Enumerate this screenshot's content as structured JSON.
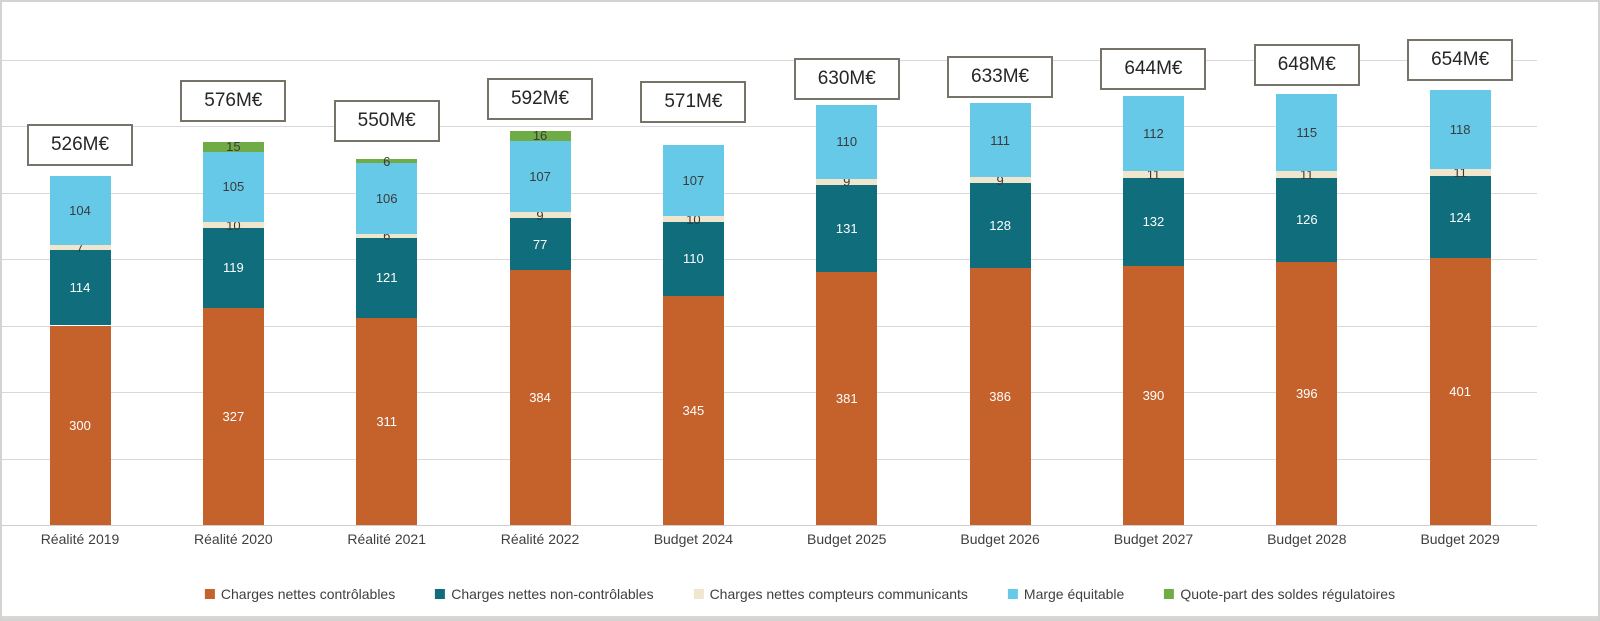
{
  "chart_data": {
    "type": "bar",
    "stacked": true,
    "title": "",
    "unit": "M€",
    "categories": [
      "Réalité 2019",
      "Réalité 2020",
      "Réalité 2021",
      "Réalité 2022",
      "Budget 2024",
      "Budget 2025",
      "Budget 2026",
      "Budget 2027",
      "Budget 2028",
      "Budget 2029"
    ],
    "series": [
      {
        "name": "Charges nettes contrôlables",
        "slug": "charges-nettes-controlables",
        "color": "#C5612B",
        "label_color": "#FFFFFF",
        "values": [
          300,
          327,
          311,
          384,
          345,
          381,
          386,
          390,
          396,
          401
        ]
      },
      {
        "name": "Charges nettes non-contrôlables",
        "slug": "charges-nettes-non-controlables",
        "color": "#0F6D7C",
        "label_color": "#FFFFFF",
        "values": [
          114,
          119,
          121,
          77,
          110,
          131,
          128,
          132,
          126,
          124
        ]
      },
      {
        "name": "Charges nettes compteurs communicants",
        "slug": "charges-nettes-compteurs-communicants",
        "color": "#F0E6CE",
        "label_color": "#3B3B3B",
        "values": [
          7,
          10,
          6,
          9,
          10,
          9,
          9,
          11,
          11,
          11
        ]
      },
      {
        "name": "Marge équitable",
        "slug": "marge-equitable",
        "color": "#66C9E8",
        "label_color": "#3B3B3B",
        "values": [
          104,
          105,
          106,
          107,
          107,
          110,
          111,
          112,
          115,
          118
        ]
      },
      {
        "name": "Quote-part des soldes régulatoires",
        "slug": "quote-part-des-soldes-regulatoires",
        "color": "#6FAC46",
        "label_color": "#3B3B3B",
        "values": [
          0,
          15,
          6,
          16,
          0,
          0,
          0,
          0,
          0,
          0
        ]
      }
    ],
    "totals": [
      526,
      576,
      550,
      592,
      571,
      630,
      633,
      644,
      648,
      654
    ],
    "total_labels": [
      "526M€",
      "576M€",
      "550M€",
      "592M€",
      "571M€",
      "630M€",
      "633M€",
      "644M€",
      "648M€",
      "654M€"
    ],
    "xlabel": "",
    "ylabel": "",
    "ylim": [
      0,
      786
    ],
    "gridline_step": 100,
    "grid": true,
    "legend_position": "bottom",
    "layout_hints": {
      "label_box_tops": [
        124,
        80,
        100,
        78,
        81,
        58,
        56,
        48,
        44,
        39
      ]
    }
  },
  "colors": {
    "gridline": "#D9D9D9",
    "axis_line": "#CFCDCD",
    "total_box_border": "#787368",
    "frame": "#D5D2D2",
    "dark_text": "#3B3B3B"
  }
}
